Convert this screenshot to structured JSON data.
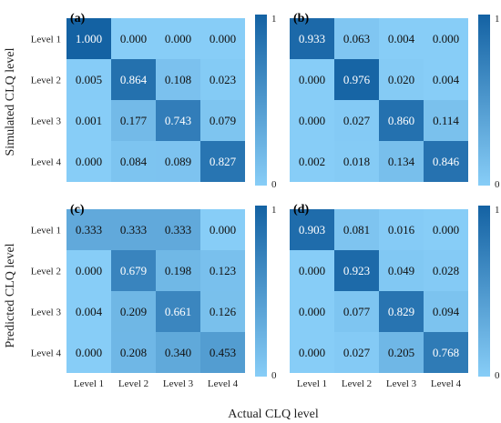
{
  "chart_data": {
    "type": "heatmap",
    "common": {
      "row_labels": [
        "Level 1",
        "Level 2",
        "Level 3",
        "Level 4"
      ],
      "col_labels": [
        "Level 1",
        "Level 2",
        "Level 3",
        "Level 4"
      ],
      "color_range": [
        0,
        1
      ],
      "colorbar_ticks": [
        "1",
        "0"
      ],
      "color_low": "#87cdf7",
      "color_high": "#1462a3"
    },
    "y_titles": [
      "Simulated CLQ level",
      "Predicted CLQ level"
    ],
    "x_title": "Actual CLQ level",
    "panels": [
      {
        "label": "(a)",
        "values": [
          [
            1.0,
            0.0,
            0.0,
            0.0
          ],
          [
            0.005,
            0.864,
            0.108,
            0.023
          ],
          [
            0.001,
            0.177,
            0.743,
            0.079
          ],
          [
            0.0,
            0.084,
            0.089,
            0.827
          ]
        ],
        "display": [
          [
            "1.000",
            "0.000",
            "0.000",
            "0.000"
          ],
          [
            "0.005",
            "0.864",
            "0.108",
            "0.023"
          ],
          [
            "0.001",
            "0.177",
            "0.743",
            "0.079"
          ],
          [
            "0.000",
            "0.084",
            "0.089",
            "0.827"
          ]
        ]
      },
      {
        "label": "(b)",
        "values": [
          [
            0.933,
            0.063,
            0.004,
            0.0
          ],
          [
            0.0,
            0.976,
            0.02,
            0.004
          ],
          [
            0.0,
            0.027,
            0.86,
            0.114
          ],
          [
            0.002,
            0.018,
            0.134,
            0.846
          ]
        ],
        "display": [
          [
            "0.933",
            "0.063",
            "0.004",
            "0.000"
          ],
          [
            "0.000",
            "0.976",
            "0.020",
            "0.004"
          ],
          [
            "0.000",
            "0.027",
            "0.860",
            "0.114"
          ],
          [
            "0.002",
            "0.018",
            "0.134",
            "0.846"
          ]
        ]
      },
      {
        "label": "(c)",
        "values": [
          [
            0.333,
            0.333,
            0.333,
            0.0
          ],
          [
            0.0,
            0.679,
            0.198,
            0.123
          ],
          [
            0.004,
            0.209,
            0.661,
            0.126
          ],
          [
            0.0,
            0.208,
            0.34,
            0.453
          ]
        ],
        "display": [
          [
            "0.333",
            "0.333",
            "0.333",
            "0.000"
          ],
          [
            "0.000",
            "0.679",
            "0.198",
            "0.123"
          ],
          [
            "0.004",
            "0.209",
            "0.661",
            "0.126"
          ],
          [
            "0.000",
            "0.208",
            "0.340",
            "0.453"
          ]
        ]
      },
      {
        "label": "(d)",
        "values": [
          [
            0.903,
            0.081,
            0.016,
            0.0
          ],
          [
            0.0,
            0.923,
            0.049,
            0.028
          ],
          [
            0.0,
            0.077,
            0.829,
            0.094
          ],
          [
            0.0,
            0.027,
            0.205,
            0.768
          ]
        ],
        "display": [
          [
            "0.903",
            "0.081",
            "0.016",
            "0.000"
          ],
          [
            "0.000",
            "0.923",
            "0.049",
            "0.028"
          ],
          [
            "0.000",
            "0.077",
            "0.829",
            "0.094"
          ],
          [
            "0.000",
            "0.027",
            "0.205",
            "0.768"
          ]
        ]
      }
    ]
  }
}
